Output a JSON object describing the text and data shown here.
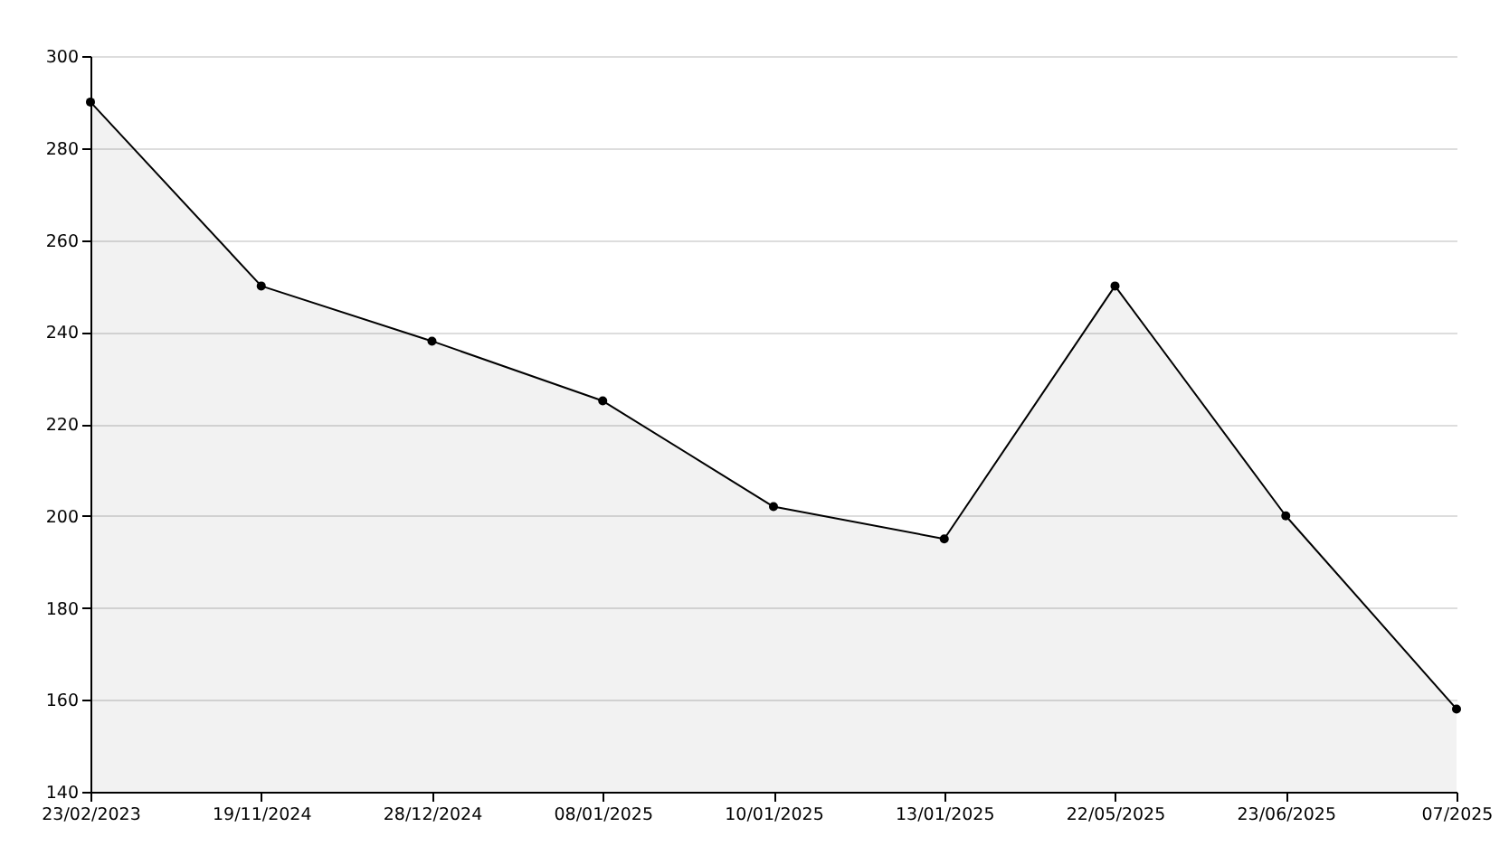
{
  "chart_data": {
    "type": "area",
    "categories": [
      "23/02/2023",
      "19/11/2024",
      "28/12/2024",
      "08/01/2025",
      "10/01/2025",
      "13/01/2025",
      "22/05/2025",
      "23/06/2025",
      "07/2025"
    ],
    "series": [
      {
        "color": "#000000",
        "values": [
          290,
          250,
          238,
          225,
          202,
          195,
          250,
          200,
          158
        ]
      }
    ],
    "ylim": [
      140,
      300
    ],
    "yticks": [
      140,
      160,
      180,
      200,
      220,
      240,
      260,
      280,
      300
    ],
    "grid": "y",
    "marker": "circle",
    "line_style": "solid"
  }
}
